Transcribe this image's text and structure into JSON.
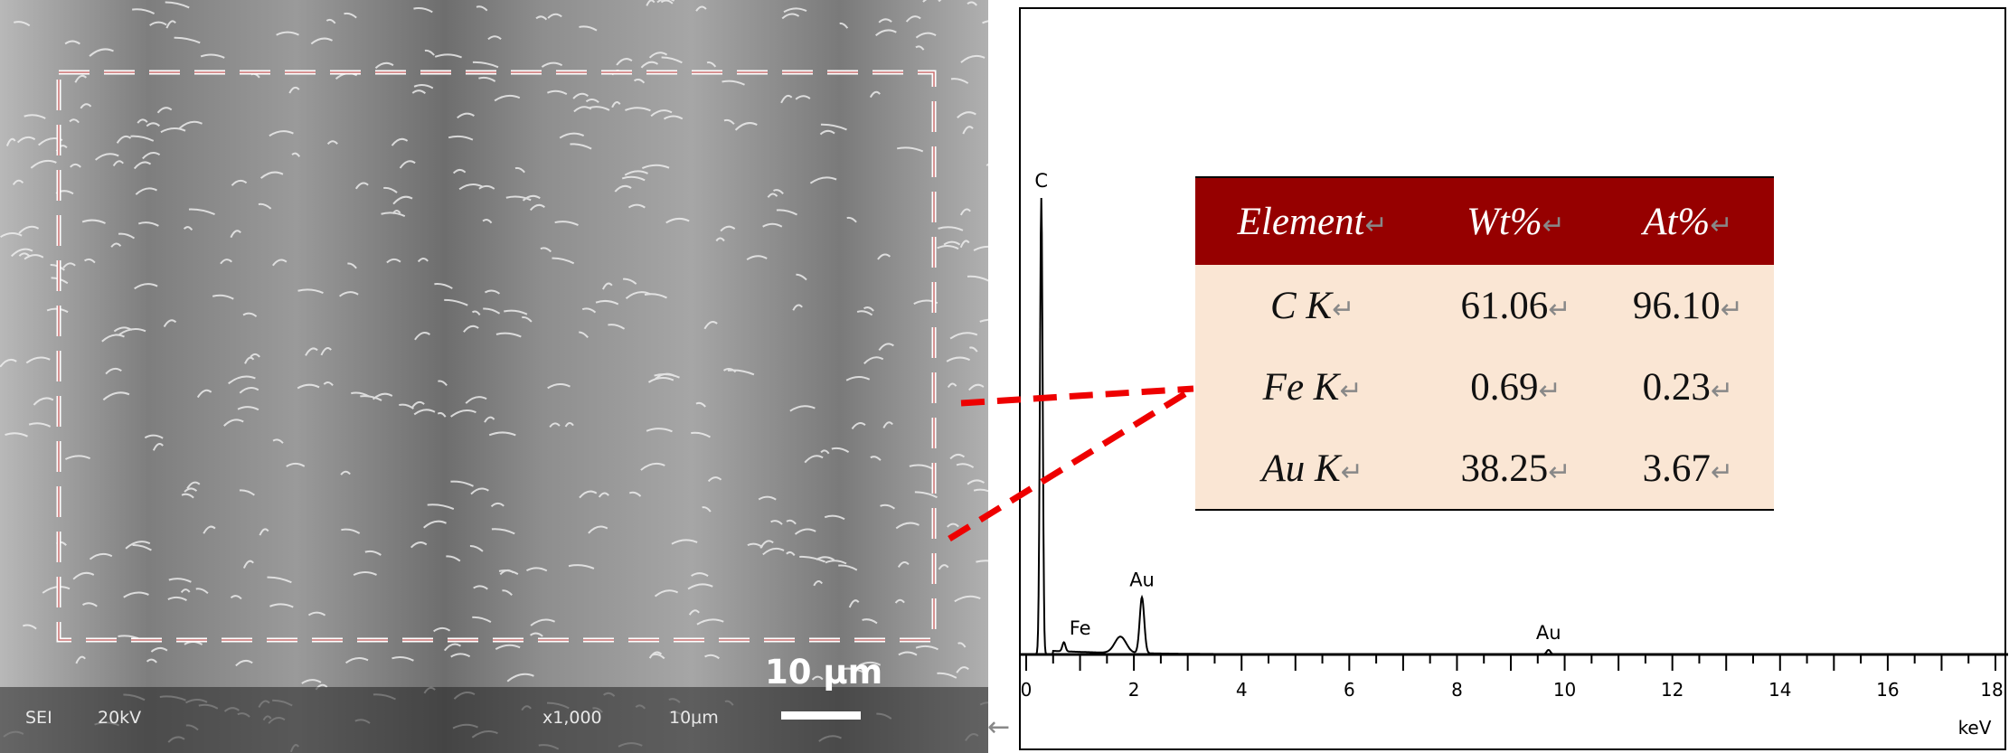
{
  "sem": {
    "info_sei": "SEI",
    "info_kv": "20kV",
    "info_mag": "x1,000",
    "info_scale": "10μm",
    "scale_bar_label": "10 μm"
  },
  "spectrum": {
    "x_unit": "keV",
    "x_ticks": [
      "0",
      "2",
      "4",
      "6",
      "8",
      "10",
      "12",
      "14",
      "16",
      "18"
    ],
    "peaks": [
      {
        "label": "C",
        "kev": 0.28
      },
      {
        "label": "Fe",
        "kev": 0.7
      },
      {
        "label": "Au",
        "kev": 2.15
      },
      {
        "label": "Au",
        "kev": 9.7
      }
    ]
  },
  "table": {
    "headers": [
      "Element",
      "Wt%",
      "At%"
    ],
    "rows": [
      {
        "element": "C K",
        "wt": "61.06",
        "at": "96.10"
      },
      {
        "element": "Fe K",
        "wt": "0.69",
        "at": "0.23"
      },
      {
        "element": "Au K",
        "wt": "38.25",
        "at": "3.67"
      }
    ],
    "return_mark": "↵"
  },
  "colors": {
    "header_bg": "#960000",
    "body_bg": "#fae6d4",
    "connector": "#ee0000"
  }
}
